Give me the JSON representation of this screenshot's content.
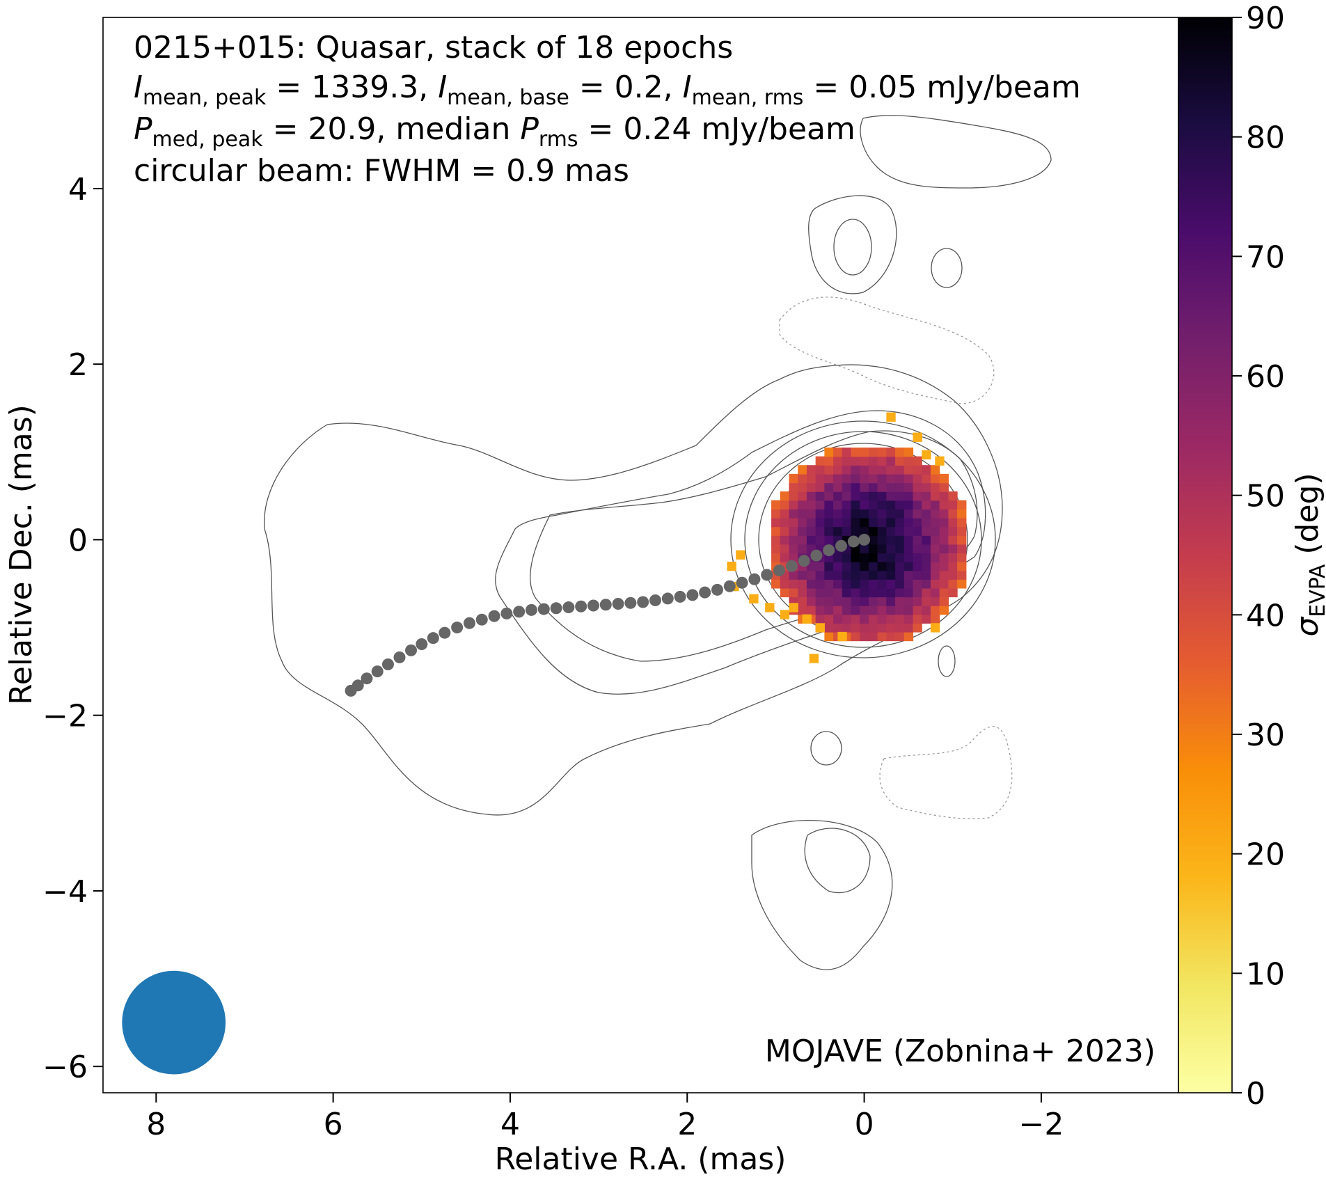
{
  "chart_data": {
    "type": "heatmap",
    "title": "",
    "annotation": {
      "line1": "0215+015: Quasar, stack of 18 epochs",
      "line2": {
        "i1": "I",
        "i1_sub": "mean, peak",
        "v1": " = 1339.3, ",
        "i2": "I",
        "i2_sub": "mean, base",
        "v2": " = 0.2, ",
        "i3": "I",
        "i3_sub": "mean, rms",
        "v3": " = 0.05 mJy/beam"
      },
      "line3": {
        "p1": "P",
        "p1_sub": "med, peak",
        "v1": " = 20.9, median ",
        "p2": "P",
        "p2_sub": "rms",
        "v2": " = 0.24 mJy/beam"
      },
      "line4": "circular beam: FWHM = 0.9 mas"
    },
    "credit": "MOJAVE (Zobnina+ 2023)",
    "xlabel": "Relative R.A. (mas)",
    "ylabel": "Relative Dec. (mas)",
    "xlim": [
      8.6,
      -3.55
    ],
    "ylim": [
      -6.3,
      5.95
    ],
    "x_ticks": [
      8,
      6,
      4,
      2,
      0,
      -2
    ],
    "x_tick_labels": [
      "8",
      "6",
      "4",
      "2",
      "0",
      "−2"
    ],
    "y_ticks": [
      4,
      2,
      0,
      -2,
      -4,
      -6
    ],
    "y_tick_labels": [
      "4",
      "2",
      "0",
      "−2",
      "−4",
      "−6"
    ],
    "colorbar": {
      "label_symbol": "σ",
      "label_sub": "EVPA",
      "label_unit": " (deg)",
      "range": [
        0,
        90
      ],
      "ticks": [
        0,
        10,
        20,
        30,
        40,
        50,
        60,
        70,
        80,
        90
      ],
      "tick_labels": [
        "0",
        "10",
        "20",
        "30",
        "40",
        "50",
        "60",
        "70",
        "80",
        "90"
      ],
      "colormap": "inferno_r"
    },
    "beam": {
      "fwhm_mas": 0.9,
      "center": [
        7.8,
        -5.5
      ],
      "color": "#1f77b4"
    },
    "ridge_line": {
      "color": "#666666",
      "points": [
        [
          5.8,
          -1.72
        ],
        [
          5.72,
          -1.66
        ],
        [
          5.62,
          -1.58
        ],
        [
          5.5,
          -1.5
        ],
        [
          5.38,
          -1.42
        ],
        [
          5.25,
          -1.34
        ],
        [
          5.12,
          -1.26
        ],
        [
          5.0,
          -1.19
        ],
        [
          4.87,
          -1.12
        ],
        [
          4.74,
          -1.06
        ],
        [
          4.6,
          -1.0
        ],
        [
          4.46,
          -0.95
        ],
        [
          4.32,
          -0.91
        ],
        [
          4.18,
          -0.87
        ],
        [
          4.04,
          -0.84
        ],
        [
          3.9,
          -0.82
        ],
        [
          3.76,
          -0.8
        ],
        [
          3.62,
          -0.79
        ],
        [
          3.48,
          -0.78
        ],
        [
          3.34,
          -0.77
        ],
        [
          3.2,
          -0.76
        ],
        [
          3.06,
          -0.75
        ],
        [
          2.92,
          -0.74
        ],
        [
          2.78,
          -0.73
        ],
        [
          2.64,
          -0.72
        ],
        [
          2.5,
          -0.71
        ],
        [
          2.36,
          -0.69
        ],
        [
          2.22,
          -0.67
        ],
        [
          2.08,
          -0.65
        ],
        [
          1.94,
          -0.63
        ],
        [
          1.8,
          -0.6
        ],
        [
          1.66,
          -0.57
        ],
        [
          1.52,
          -0.53
        ],
        [
          1.38,
          -0.49
        ],
        [
          1.24,
          -0.45
        ],
        [
          1.1,
          -0.4
        ],
        [
          0.96,
          -0.35
        ],
        [
          0.82,
          -0.3
        ],
        [
          0.68,
          -0.24
        ],
        [
          0.54,
          -0.18
        ],
        [
          0.4,
          -0.12
        ],
        [
          0.26,
          -0.07
        ],
        [
          0.12,
          -0.02
        ],
        [
          0.0,
          0.0
        ]
      ]
    },
    "epvpa_map": {
      "core_center": [
        0.0,
        0.0
      ],
      "core_radius_mas": 1.15,
      "value_at_core": 88,
      "value_at_edge": 35,
      "orange_pixel_value": 20,
      "orange_pixels": [
        [
          1.45,
          -0.12
        ],
        [
          1.55,
          -0.25
        ],
        [
          1.52,
          -0.48
        ],
        [
          0.85,
          -0.72
        ],
        [
          0.7,
          -0.85
        ],
        [
          0.62,
          -1.3
        ],
        [
          0.55,
          -0.95
        ],
        [
          0.3,
          -1.05
        ],
        [
          -0.25,
          1.45
        ],
        [
          -0.55,
          1.22
        ],
        [
          -0.65,
          1.02
        ],
        [
          -0.8,
          0.95
        ],
        [
          -0.75,
          -0.95
        ],
        [
          1.3,
          -0.62
        ],
        [
          1.12,
          -0.72
        ],
        [
          0.95,
          -0.8
        ]
      ]
    },
    "contours": {
      "color": "#555555",
      "negative_style": "dotted"
    },
    "grid": false,
    "legend": "none"
  }
}
